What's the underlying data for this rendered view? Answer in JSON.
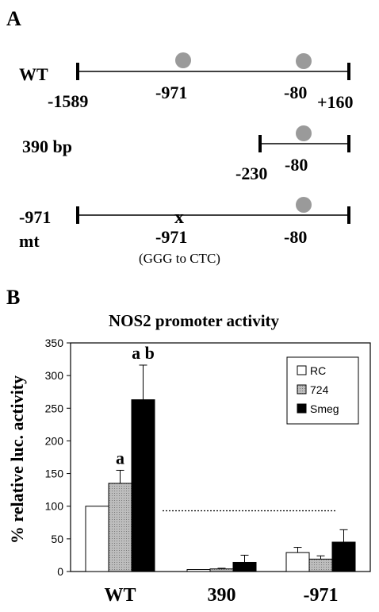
{
  "panel_a": {
    "label": "A",
    "constructs": [
      {
        "name": "WT",
        "left_label": "-1589",
        "right_label": "+160",
        "sites": [
          {
            "label": "-971",
            "mutated": false
          },
          {
            "label": "-80",
            "mutated": false
          }
        ]
      },
      {
        "name": "390 bp",
        "left_label": "-230",
        "sites": [
          {
            "label": "-80",
            "mutated": false
          }
        ]
      },
      {
        "name_line1": "-971",
        "name_line2": "mt",
        "sites": [
          {
            "label": "-971",
            "mutated": true,
            "marker": "x"
          },
          {
            "label": "-80",
            "mutated": false
          }
        ],
        "note": "(GGG to CTC)"
      }
    ]
  },
  "panel_b": {
    "label": "B",
    "colors": {
      "RC": "#ffffff",
      "724": "#bdbdbd",
      "Smeg": "#000000"
    },
    "chart_data": {
      "type": "bar",
      "title": "NOS2  promoter activity",
      "ylabel": "% relative luc. activity",
      "xlabel": "",
      "categories": [
        "WT",
        "390",
        "-971"
      ],
      "ylim": [
        0,
        350
      ],
      "yticks": [
        "0",
        "50",
        "100",
        "150",
        "200",
        "250",
        "300",
        "350"
      ],
      "series": [
        {
          "name": "RC",
          "values": [
            100,
            3,
            29
          ],
          "errors": [
            0,
            0,
            8
          ]
        },
        {
          "name": "724",
          "values": [
            135,
            4,
            19
          ],
          "errors": [
            20,
            1,
            5
          ]
        },
        {
          "name": "Smeg",
          "values": [
            263,
            14,
            45
          ],
          "errors": [
            53,
            11,
            19
          ]
        }
      ],
      "annotations": [
        {
          "category": "WT",
          "series": "724",
          "text": "a"
        },
        {
          "category": "WT",
          "series": "Smeg",
          "text": "a b"
        }
      ],
      "reference_line": 93,
      "legend": "top-right",
      "grid": false
    }
  }
}
